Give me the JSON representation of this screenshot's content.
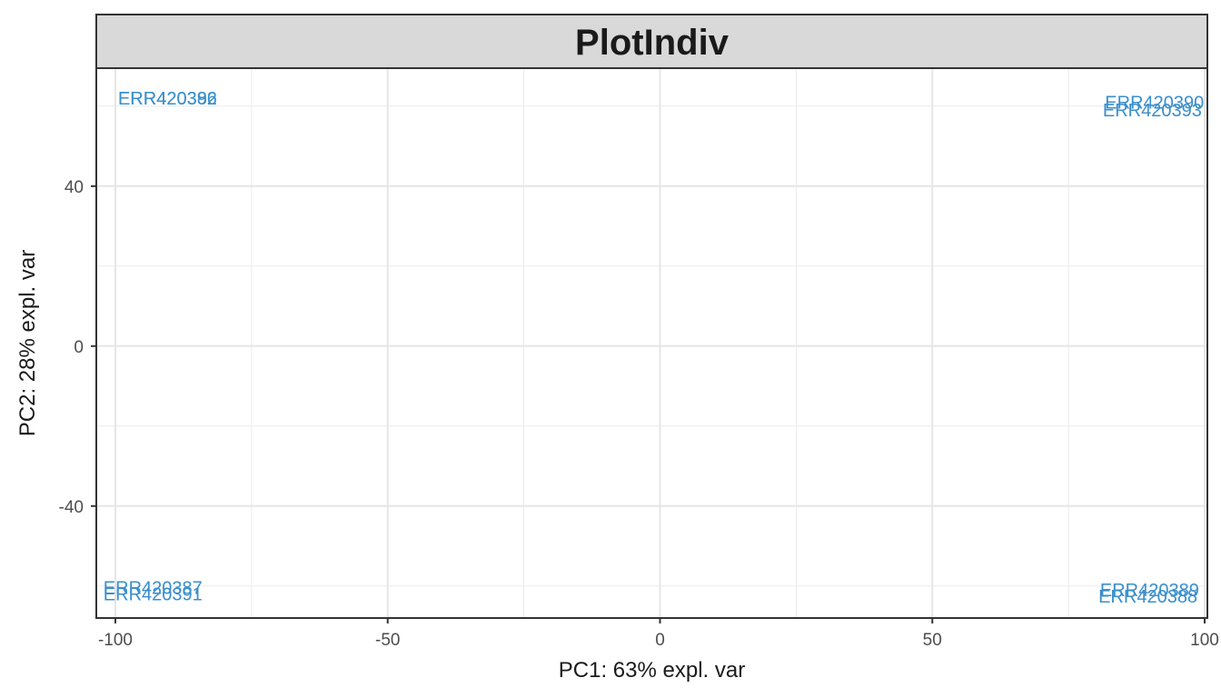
{
  "chart_data": {
    "type": "scatter",
    "title": "PlotIndiv",
    "xlabel": "PC1: 63% expl. var",
    "ylabel": "PC2: 28% expl. var",
    "xlim": [
      -103.5,
      100.5
    ],
    "ylim": [
      -68,
      69.5
    ],
    "x_ticks": [
      -100,
      -50,
      0,
      50,
      100
    ],
    "x_tick_labels": [
      "-100",
      "-50",
      "0",
      "50",
      "100"
    ],
    "y_ticks": [
      -40,
      0,
      40
    ],
    "y_tick_labels": [
      "-40",
      "0",
      "40"
    ],
    "grid": true,
    "point_color": "#3a8fcc",
    "panel_strip_color": "#d9d9d9",
    "points": [
      {
        "label": "ERR420386",
        "x": -99.5,
        "y": 62
      },
      {
        "label": "ERR420392",
        "x": -99.5,
        "y": 62
      },
      {
        "label": "ERR420390",
        "x": 81.7,
        "y": 61
      },
      {
        "label": "ERR420393",
        "x": 81.3,
        "y": 59
      },
      {
        "label": "ERR420387",
        "x": -102.2,
        "y": -60.4
      },
      {
        "label": "ERR420391",
        "x": -102.2,
        "y": -62
      },
      {
        "label": "ERR420389",
        "x": 80.8,
        "y": -61
      },
      {
        "label": "ERR420388",
        "x": 80.5,
        "y": -62.6
      }
    ]
  }
}
